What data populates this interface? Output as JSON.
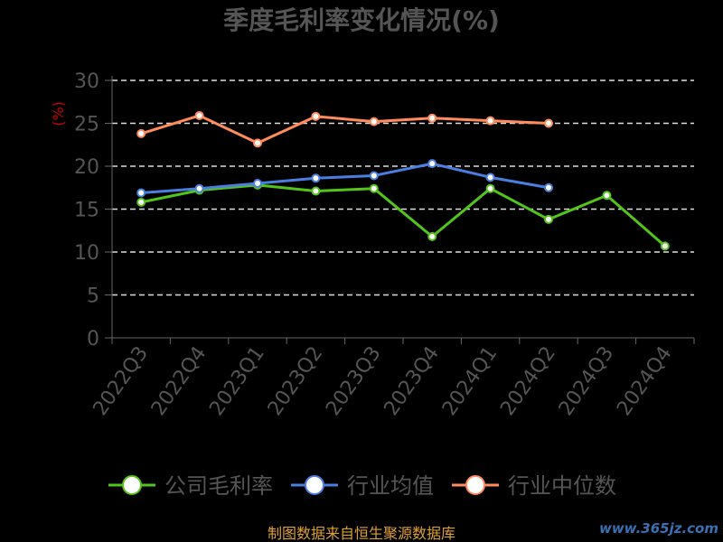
{
  "chart_data": {
    "type": "line",
    "title": "季度毛利率变化情况(%)",
    "ylabel": "(%)",
    "xlabel": "",
    "ylim": [
      0,
      30
    ],
    "yticks": [
      "0",
      "5",
      "10",
      "15",
      "20",
      "25",
      "30"
    ],
    "grid": true,
    "legend_position": "bottom",
    "categories": [
      "2022Q3",
      "2022Q4",
      "2023Q1",
      "2023Q2",
      "2023Q3",
      "2023Q4",
      "2024Q1",
      "2024Q2",
      "2024Q3",
      "2024Q4"
    ],
    "series": [
      {
        "name": "公司毛利率",
        "color": "#52c41a",
        "values": [
          15.8,
          17.2,
          17.8,
          17.1,
          17.4,
          11.8,
          17.4,
          13.8,
          16.6,
          10.7
        ]
      },
      {
        "name": "行业均值",
        "color": "#4a7fe0",
        "values": [
          16.9,
          17.4,
          18.0,
          18.6,
          18.9,
          20.3,
          18.7,
          17.5,
          null,
          null
        ]
      },
      {
        "name": "行业中位数",
        "color": "#ff8c5a",
        "values": [
          23.8,
          25.9,
          22.7,
          25.8,
          25.2,
          25.6,
          25.3,
          25.0,
          null,
          null
        ]
      }
    ]
  },
  "footer": {
    "source": "制图数据来自恒生聚源数据库",
    "watermark": "www.365jz.com"
  }
}
